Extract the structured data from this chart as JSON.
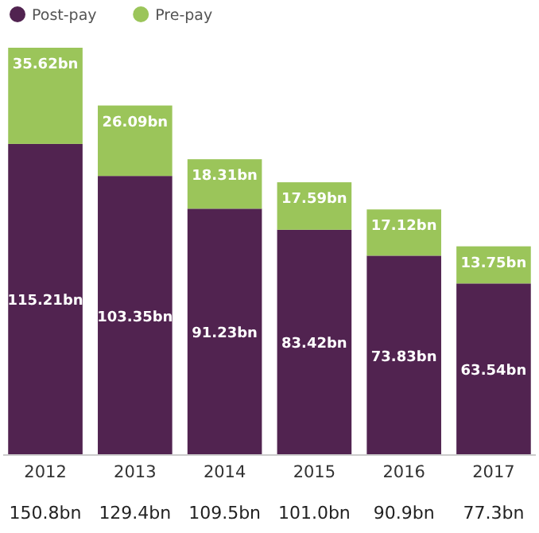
{
  "chart_data": {
    "type": "bar",
    "stacked": true,
    "legend": "top left",
    "categories": [
      "2012",
      "2013",
      "2014",
      "2015",
      "2016",
      "2017"
    ],
    "series": [
      {
        "name": "Post-pay",
        "color": "#512350",
        "values": [
          115.21,
          103.35,
          91.23,
          83.42,
          73.83,
          63.54
        ],
        "value_labels": [
          "115.21bn",
          "103.35bn",
          "91.23bn",
          "83.42bn",
          "73.83bn",
          "63.54bn"
        ]
      },
      {
        "name": "Pre-pay",
        "color": "#9bc55a",
        "values": [
          35.62,
          26.09,
          18.31,
          17.59,
          17.12,
          13.75
        ],
        "value_labels": [
          "35.62bn",
          "26.09bn",
          "18.31bn",
          "17.59bn",
          "17.12bn",
          "13.75bn"
        ]
      }
    ],
    "totals": [
      "150.8bn",
      "129.4bn",
      "109.5bn",
      "101.0bn",
      "90.9bn",
      "77.3bn"
    ]
  }
}
